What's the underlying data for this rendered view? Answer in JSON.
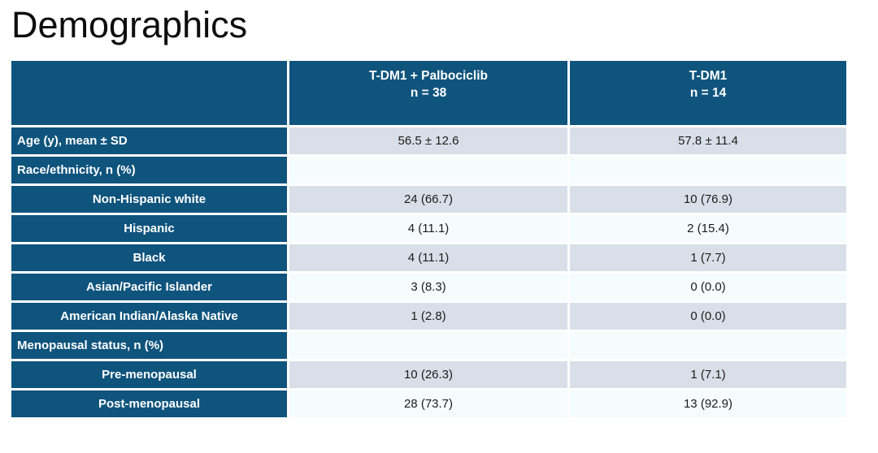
{
  "slide": {
    "title": "Demographics"
  },
  "colors": {
    "header_blue": "#0f547d",
    "row_gray": "#d9dfe8",
    "row_light": "#f6fbfc",
    "header_text": "#ffffff",
    "body_text": "#1c1c1c",
    "background": "#ffffff"
  },
  "table": {
    "header": {
      "label_col": "",
      "arm1": {
        "line1": "T-DM1 + Palbociclib",
        "line2": "n = 38"
      },
      "arm2": {
        "line1": "T-DM1",
        "line2": "n = 14"
      }
    },
    "rows": [
      {
        "label": "Age (y), mean ± SD",
        "arm1": "56.5 ± 12.6",
        "arm2": "57.8 ± 11.4"
      },
      {
        "label": "Race/ethnicity, n (%)",
        "arm1": "",
        "arm2": ""
      },
      {
        "label": "Non-Hispanic white",
        "arm1": "24 (66.7)",
        "arm2": "10 (76.9)"
      },
      {
        "label": "Hispanic",
        "arm1": "4 (11.1)",
        "arm2": "2 (15.4)"
      },
      {
        "label": "Black",
        "arm1": "4 (11.1)",
        "arm2": "1 (7.7)"
      },
      {
        "label": "Asian/Pacific Islander",
        "arm1": "3 (8.3)",
        "arm2": "0 (0.0)"
      },
      {
        "label": "American Indian/Alaska Native",
        "arm1": "1 (2.8)",
        "arm2": "0 (0.0)"
      },
      {
        "label": "Menopausal status, n (%)",
        "arm1": "",
        "arm2": ""
      },
      {
        "label": "Pre-menopausal",
        "arm1": "10 (26.3)",
        "arm2": "1 (7.1)"
      },
      {
        "label": "Post-menopausal",
        "arm1": "28 (73.7)",
        "arm2": "13 (92.9)"
      }
    ]
  }
}
